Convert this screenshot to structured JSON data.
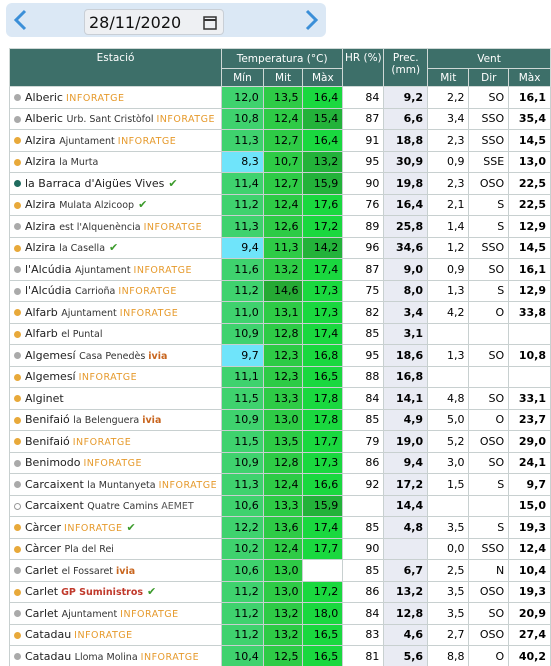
{
  "header": {
    "date": "28/11/2020"
  },
  "table": {
    "groups": [
      "Estació",
      "Temperatura (°C)",
      "HR (%)",
      "Prec. (mm)",
      "Vent"
    ],
    "subheaders": [
      "Mín",
      "Mit",
      "Màx",
      "Mit",
      "Dir",
      "Màx"
    ],
    "rows": [
      {
        "dot": "#aaaaaa",
        "name": "Alberic",
        "source": "INFORATGE",
        "values": [
          "12,0",
          "13,5",
          "16,4",
          "84",
          "9,2",
          "2,2",
          "SO",
          "16,1"
        ]
      },
      {
        "dot": "#aaaaaa",
        "name": "Alberic",
        "detail": "Urb. Sant Cristòfol",
        "source": "INFORATGE",
        "values": [
          "10,8",
          "12,4",
          "15,4",
          "87",
          "6,6",
          "3,4",
          "SSO",
          "35,4"
        ]
      },
      {
        "dot": "#e8a93a",
        "name": "Alzira",
        "detail": "Ajuntament",
        "source": "INFORATGE",
        "values": [
          "11,3",
          "12,7",
          "16,4",
          "91",
          "18,8",
          "2,3",
          "SSO",
          "14,5"
        ]
      },
      {
        "dot": "#e8a93a",
        "name": "Alzira",
        "detail": "la Murta",
        "values": [
          "8,3",
          "10,7",
          "13,2",
          "95",
          "30,9",
          "0,9",
          "SSE",
          "13,0"
        ]
      },
      {
        "dot": "#1f6b5e",
        "name": "la Barraca d'Aigües Vives",
        "check": true,
        "values": [
          "11,4",
          "12,7",
          "15,9",
          "90",
          "19,8",
          "2,3",
          "OSO",
          "22,5"
        ]
      },
      {
        "dot": "#e8a93a",
        "name": "Alzira",
        "detail": "Mulata Alzicoop",
        "check": true,
        "values": [
          "11,2",
          "12,4",
          "17,6",
          "76",
          "16,4",
          "2,1",
          "S",
          "22,5"
        ]
      },
      {
        "dot": "#aaaaaa",
        "name": "Alzira",
        "detail": "est l'Alquenència",
        "source": "INFORATGE",
        "values": [
          "11,3",
          "12,6",
          "17,2",
          "89",
          "25,8",
          "1,4",
          "S",
          "12,9"
        ]
      },
      {
        "dot": "#e8a93a",
        "name": "Alzira",
        "detail": "la Casella",
        "check": true,
        "values": [
          "9,4",
          "11,3",
          "14,2",
          "96",
          "34,6",
          "1,2",
          "SSO",
          "14,5"
        ]
      },
      {
        "dot": "#aaaaaa",
        "name": "l'Alcúdia",
        "detail": "Ajuntament",
        "source": "INFORATGE",
        "values": [
          "11,6",
          "13,2",
          "17,4",
          "87",
          "9,0",
          "0,9",
          "SO",
          "16,1"
        ]
      },
      {
        "dot": "#aaaaaa",
        "name": "l'Alcúdia",
        "detail": "Carrioña",
        "source": "INFORATGE",
        "values": [
          "11,2",
          "14,6",
          "17,3",
          "75",
          "8,0",
          "1,3",
          "S",
          "12,9"
        ]
      },
      {
        "dot": "#e8a93a",
        "name": "Alfarb",
        "detail": "Ajuntament",
        "source": "INFORATGE",
        "values": [
          "11,0",
          "13,1",
          "17,3",
          "82",
          "3,4",
          "4,2",
          "O",
          "33,8"
        ]
      },
      {
        "dot": "#e8a93a",
        "name": "Alfarb",
        "detail": "el Puntal",
        "values": [
          "10,9",
          "12,8",
          "17,4",
          "85",
          "3,1",
          null,
          null,
          null
        ]
      },
      {
        "dot": "#aaaaaa",
        "name": "Algemesí",
        "detail": "Casa Penedès",
        "source": "ivia",
        "values": [
          "9,7",
          "12,3",
          "16,8",
          "95",
          "18,6",
          "1,3",
          "SO",
          "10,8"
        ]
      },
      {
        "dot": "#e8a93a",
        "name": "Algemesí",
        "source": "INFORATGE",
        "values": [
          "11,1",
          "12,3",
          "16,5",
          "88",
          "16,8",
          null,
          null,
          null
        ]
      },
      {
        "dot": "#e8a93a",
        "name": "Alginet",
        "values": [
          "11,5",
          "13,3",
          "17,8",
          "84",
          "14,1",
          "4,8",
          "SO",
          "33,1"
        ]
      },
      {
        "dot": "#e8a93a",
        "name": "Benifaió",
        "detail": "la Belenguera",
        "source": "ivia",
        "values": [
          "10,9",
          "13,0",
          "17,8",
          "85",
          "4,9",
          "5,0",
          "O",
          "23,7"
        ]
      },
      {
        "dot": "#e8a93a",
        "name": "Benifaió",
        "source": "INFORATGE",
        "values": [
          "11,5",
          "13,5",
          "17,7",
          "79",
          "19,0",
          "5,2",
          "OSO",
          "29,0"
        ]
      },
      {
        "dot": "#aaaaaa",
        "name": "Benimodo",
        "source": "INFORATGE",
        "values": [
          "10,9",
          "12,8",
          "17,3",
          "86",
          "9,4",
          "3,0",
          "SO",
          "24,1"
        ]
      },
      {
        "dot": "#aaaaaa",
        "name": "Carcaixent",
        "detail": "la Muntanyeta",
        "source": "INFORATGE",
        "values": [
          "11,3",
          "12,4",
          "16,6",
          "92",
          "17,2",
          "1,5",
          "S",
          "9,7"
        ]
      },
      {
        "dot": "#ffffff",
        "name": "Carcaixent",
        "detail": "Quatre Camins",
        "source": "AEMET",
        "values": [
          "10,6",
          "13,3",
          "15,9",
          null,
          "14,4",
          null,
          null,
          "15,0"
        ]
      },
      {
        "dot": "#e8a93a",
        "name": "Càrcer",
        "source": "INFORATGE",
        "check": true,
        "values": [
          "12,2",
          "13,6",
          "17,4",
          "85",
          "4,8",
          "3,5",
          "S",
          "19,3"
        ]
      },
      {
        "dot": "#e8a93a",
        "name": "Càrcer",
        "detail": "Pla del Rei",
        "values": [
          "10,2",
          "12,4",
          "17,7",
          "90",
          null,
          "0,0",
          "SSO",
          "12,4"
        ]
      },
      {
        "dot": "#aaaaaa",
        "name": "Carlet",
        "detail": "el Fossaret",
        "source": "ivia",
        "values": [
          "10,6",
          "13,0",
          null,
          "85",
          "6,7",
          "2,5",
          "N",
          "10,4"
        ]
      },
      {
        "dot": "#e8a93a",
        "name": "Carlet",
        "source": "GP Suministros",
        "check": true,
        "values": [
          "11,2",
          "13,0",
          "17,2",
          "86",
          "13,2",
          "3,5",
          "OSO",
          "19,3"
        ]
      },
      {
        "dot": "#aaaaaa",
        "name": "Carlet",
        "detail": "Ajuntament",
        "source": "INFORATGE",
        "values": [
          "11,2",
          "13,2",
          "18,0",
          "84",
          "12,8",
          "3,5",
          "SO",
          "20,9"
        ]
      },
      {
        "dot": "#e8a93a",
        "name": "Catadau",
        "source": "INFORATGE",
        "values": [
          "11,2",
          "13,2",
          "16,5",
          "83",
          "4,6",
          "2,7",
          "OSO",
          "27,4"
        ]
      },
      {
        "dot": "#aaaaaa",
        "name": "Catadau",
        "detail": "Lloma Molina",
        "source": "INFORATGE",
        "values": [
          "10,4",
          "12,5",
          "16,5",
          "81",
          "5,6",
          "8,8",
          "O",
          "40,2"
        ]
      }
    ]
  }
}
